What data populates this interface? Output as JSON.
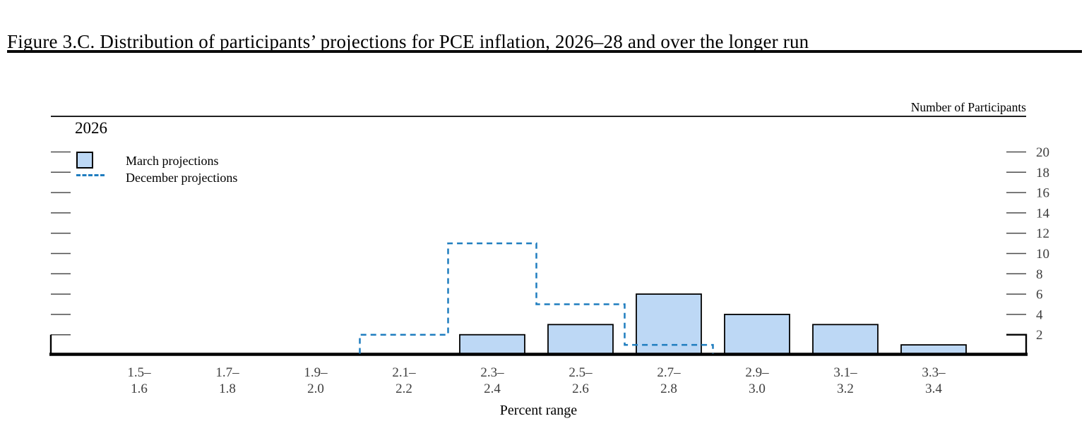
{
  "title": "Figure 3.C. Distribution of participants’ projections for PCE inflation, 2026–28 and over the longer run",
  "chart_data": {
    "type": "bar",
    "title": "2026",
    "categories": [
      [
        "1.5–",
        "1.6"
      ],
      [
        "1.7–",
        "1.8"
      ],
      [
        "1.9–",
        "2.0"
      ],
      [
        "2.1–",
        "2.2"
      ],
      [
        "2.3–",
        "2.4"
      ],
      [
        "2.5–",
        "2.6"
      ],
      [
        "2.7–",
        "2.8"
      ],
      [
        "2.9–",
        "3.0"
      ],
      [
        "3.1–",
        "3.2"
      ],
      [
        "3.3–",
        "3.4"
      ]
    ],
    "series": [
      {
        "name": "March projections",
        "type": "bar",
        "color": "#BDD8F5",
        "border_color": "#000000",
        "values": [
          0,
          0,
          0,
          0,
          2,
          3,
          6,
          4,
          3,
          1
        ]
      },
      {
        "name": "December projections",
        "type": "step-dashed",
        "color": "#1F7DBF",
        "values": [
          0,
          0,
          0,
          2,
          11,
          5,
          1,
          0,
          0,
          0
        ]
      }
    ],
    "xlabel": "Percent range",
    "ylabel_right": "Number of Participants",
    "ylim": [
      0,
      20
    ],
    "yticks": [
      2,
      4,
      6,
      8,
      10,
      12,
      14,
      16,
      18,
      20
    ],
    "ytick_side": "both",
    "ytick_labels_side": "right",
    "legend_position": "top-left",
    "grid": false,
    "axis_colors": {
      "frame": "#000000",
      "tick": "#4d4d4d",
      "tick_label": "#3d3d3d"
    }
  }
}
